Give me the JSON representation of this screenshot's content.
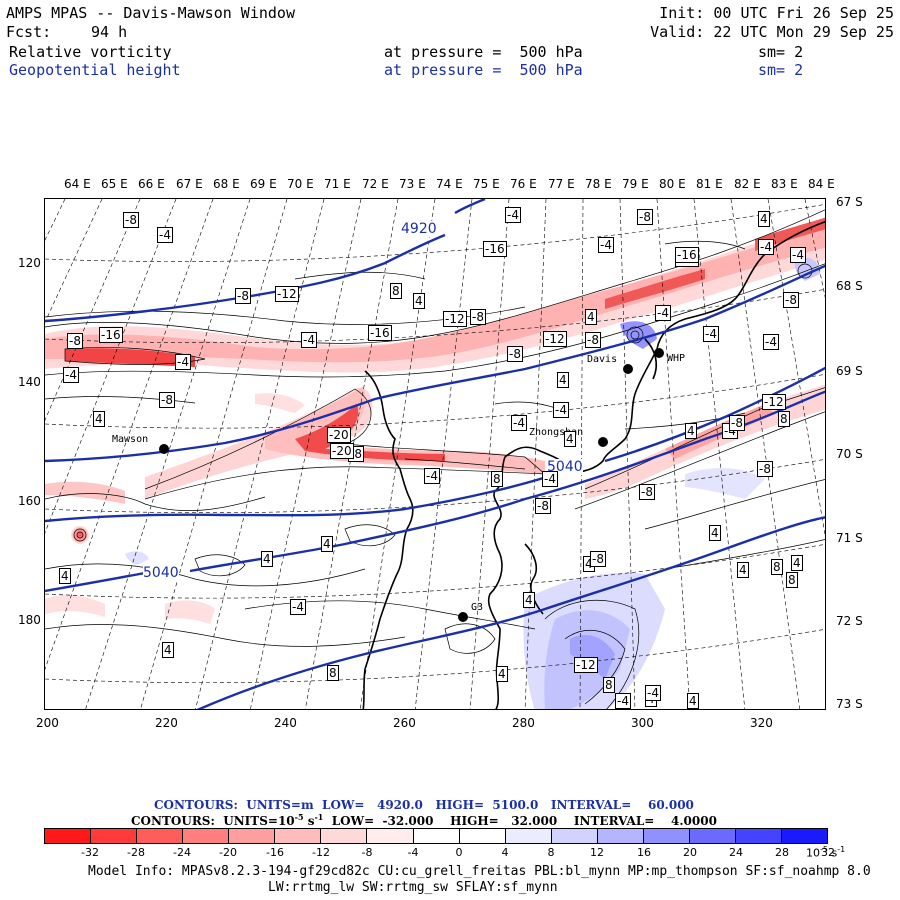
{
  "header": {
    "title": "AMPS MPAS -- Davis-Mawson Window",
    "fcst_label": "Fcst:",
    "fcst_value": "94 h",
    "init": "Init: 00 UTC Fri 26 Sep 25",
    "valid": "Valid: 22 UTC Mon 29 Sep 25",
    "field1": {
      "name": "Relative vorticity",
      "level": "at pressure =  500 hPa",
      "sm": "sm= 2"
    },
    "field2": {
      "name": "Geopotential height",
      "level": "at pressure =  500 hPa",
      "sm": "sm= 2"
    }
  },
  "axes": {
    "top": [
      "64 E",
      "65 E",
      "66 E",
      "67 E",
      "68 E",
      "69 E",
      "70 E",
      "71 E",
      "72 E",
      "73 E",
      "74 E",
      "75 E",
      "76 E",
      "77 E",
      "78 E",
      "79 E",
      "80 E",
      "81 E",
      "82 E",
      "83 E",
      "84 E"
    ],
    "right": [
      "67 S",
      "68 S",
      "69 S",
      "70 S",
      "71 S",
      "72 S",
      "73 S"
    ],
    "bottom": [
      "200",
      "220",
      "240",
      "260",
      "280",
      "300",
      "320"
    ],
    "left": [
      "120",
      "140",
      "160",
      "180"
    ]
  },
  "map": {
    "stations": [
      {
        "name": "Mawson"
      },
      {
        "name": "Davis"
      },
      {
        "name": "WHP"
      },
      {
        "name": "Zhongshan"
      },
      {
        "name": "G3"
      }
    ],
    "height_labels": [
      "4920",
      "5040",
      "5040"
    ],
    "vort_labels": [
      "-8",
      "-4",
      "-4",
      "-8",
      "4",
      "-4",
      "-4",
      "-16",
      "-12",
      "-8",
      "-8",
      "-12",
      "8",
      "4",
      "-12",
      "-20",
      "-8",
      "-4",
      "8",
      "-4",
      "-16",
      "-8",
      "-16",
      "-4",
      "-4",
      "-8",
      "4",
      "-8",
      "-12",
      "-4",
      "-16",
      "8",
      "-20",
      "-8",
      "-4",
      "-4",
      "4",
      "-8",
      "4",
      "-4",
      "4",
      "-4",
      "-8",
      "-8",
      "4",
      "4",
      "4",
      "4",
      "4",
      "4",
      "8",
      "-4",
      "4",
      "4",
      "8",
      "-12",
      "4",
      "4",
      "8",
      "-4",
      "-8",
      "-4",
      "-4",
      "-12",
      "-8",
      "-4",
      "4",
      "8",
      "-8",
      "4",
      "-4",
      "4"
    ]
  },
  "legend": {
    "line1": {
      "contours": "CONTOURS:",
      "units": "UNITS=m",
      "low": "LOW=   4920.0",
      "high": "HIGH=  5100.0",
      "interval": "INTERVAL=    60.000"
    },
    "line2": {
      "contours": "CONTOURS:",
      "units": "UNITS=10",
      "units_sup": "-5",
      "units_tail": " s",
      "units_tail_sup": "-1",
      "low": "LOW=  -32.000",
      "high": "HIGH=   32.000",
      "interval": "INTERVAL=    4.0000"
    },
    "colorbar_colors": [
      "#ff1a1a",
      "#ff3a3a",
      "#ff5c5c",
      "#ff7e7e",
      "#ff9e9e",
      "#ffbcbc",
      "#ffd8d8",
      "#ffeded",
      "#ffffff",
      "#ffffff",
      "#ececff",
      "#d2d2ff",
      "#b4b4ff",
      "#9090ff",
      "#6a6aff",
      "#4444ff",
      "#1a1aff"
    ],
    "colorbar_labels": [
      "-32",
      "-28",
      "-24",
      "-20",
      "-16",
      "-12",
      "-8",
      "-4",
      "0",
      "4",
      "8",
      "12",
      "16",
      "20",
      "24",
      "28",
      "32"
    ],
    "colorbar_unit": "10",
    "colorbar_unit_sup": "-5",
    "colorbar_unit_tail": " s",
    "colorbar_unit_tail_sup": "-1"
  },
  "footer": {
    "line1": "Model Info: MPASv8.2.3-194-gf29cd82c CU:cu_grell_freitas PBL:bl_mynn MP:mp_thompson SF:sf_noahmp 8.0",
    "line2": "LW:rrtmg_lw SW:rrtmg_sw SFLAY:sf_mynn"
  }
}
